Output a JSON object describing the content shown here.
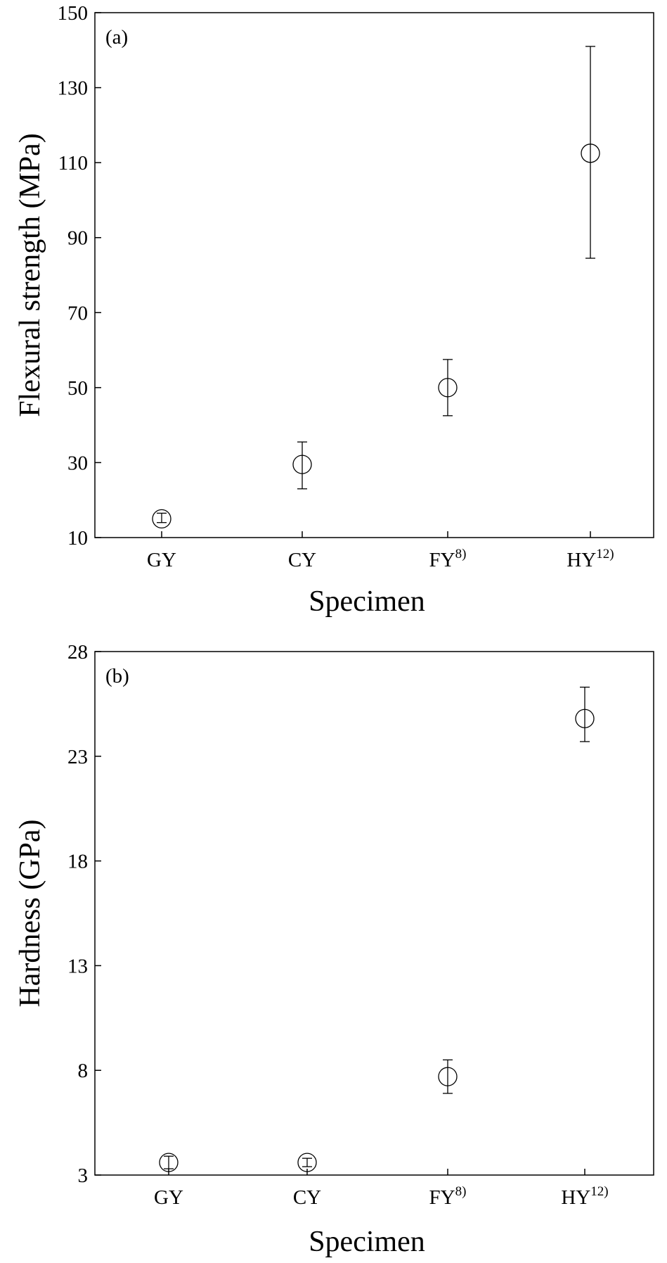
{
  "chart_data": [
    {
      "type": "scatter",
      "panel_label": "(a)",
      "xlabel": "Specimen",
      "ylabel": "Flexural strength (MPa)",
      "ylim": [
        10,
        150
      ],
      "yticks": [
        "10",
        "30",
        "50",
        "70",
        "90",
        "110",
        "130",
        "150"
      ],
      "categories": [
        {
          "base": "GY",
          "sup": ""
        },
        {
          "base": "CY",
          "sup": ""
        },
        {
          "base": "FY",
          "sup": "8)"
        },
        {
          "base": "HY",
          "sup": "12)"
        }
      ],
      "values": [
        15,
        29.5,
        50,
        112.5
      ],
      "err_low": [
        14,
        23,
        42.5,
        84.5
      ],
      "err_high": [
        16.5,
        35.5,
        57.5,
        141
      ],
      "grid": false,
      "legend": "none"
    },
    {
      "type": "scatter",
      "panel_label": "(b)",
      "xlabel": "Specimen",
      "ylabel": "Hardness (GPa)",
      "ylim": [
        3,
        28
      ],
      "yticks": [
        "3",
        "8",
        "13",
        "18",
        "23",
        "28"
      ],
      "categories": [
        {
          "base": "GY",
          "sup": ""
        },
        {
          "base": "CY",
          "sup": ""
        },
        {
          "base": "FY",
          "sup": "8)"
        },
        {
          "base": "HY",
          "sup": "12)"
        }
      ],
      "values": [
        3.6,
        3.6,
        7.7,
        24.8
      ],
      "err_low": [
        3.3,
        3.4,
        6.9,
        23.7
      ],
      "err_high": [
        3.9,
        3.8,
        8.5,
        26.3
      ],
      "grid": false,
      "legend": "none"
    }
  ]
}
